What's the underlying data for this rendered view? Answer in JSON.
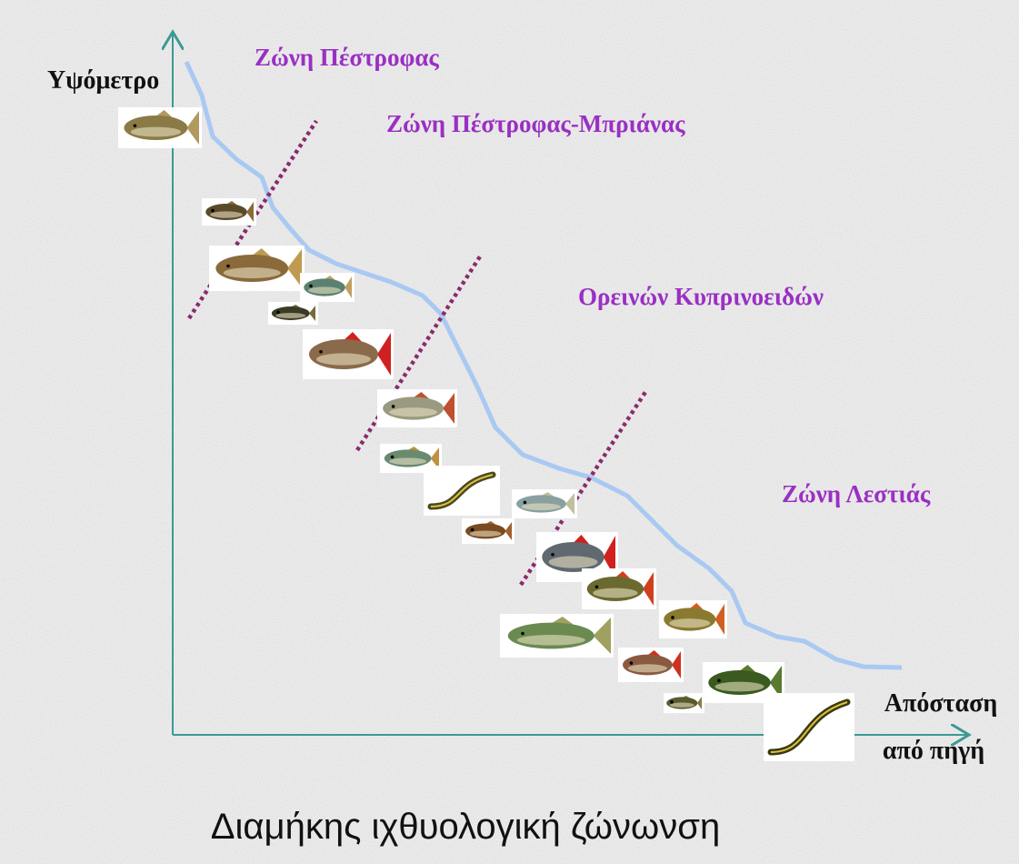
{
  "axes": {
    "y_label": "Υψόμετρο",
    "x_label": [
      "Απόσταση",
      "από πηγή"
    ]
  },
  "zones": [
    "Ζώνη Πέστροφας",
    "Ζώνη Πέστροφας-Μπριάνας",
    "Ορεινών Κυπρινοειδών",
    "Ζώνη Λεστιάς"
  ],
  "title": "Διαμήκης ιχθυολογική ζώνωνση"
}
